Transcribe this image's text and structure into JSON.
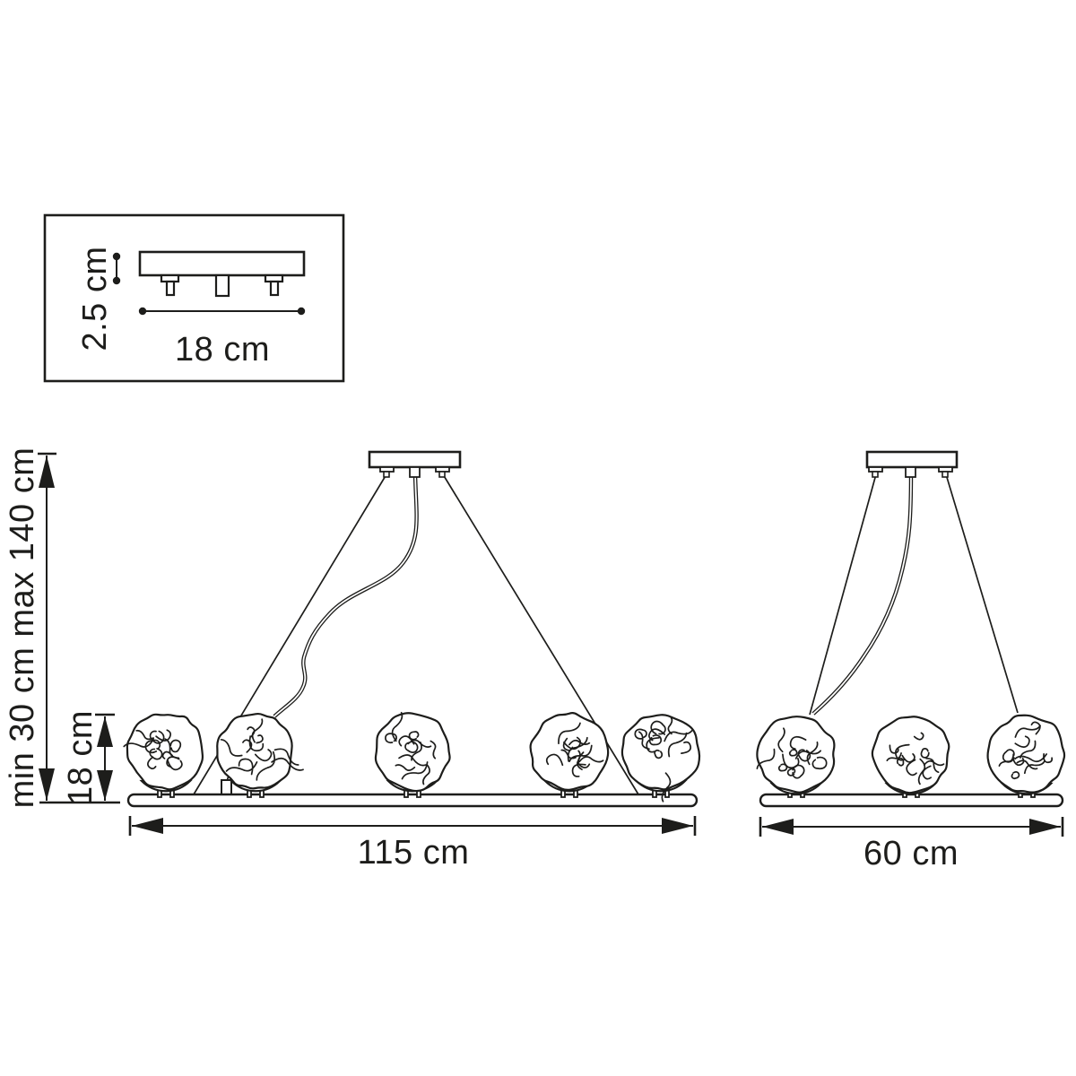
{
  "page": {
    "background": "#ffffff",
    "line_color": "#1d1d1b"
  },
  "canopy_inset": {
    "height_label": "2.5 cm",
    "width_label": "18 cm",
    "stud_count": 3
  },
  "left_fixture": {
    "shade_count": 5,
    "width_label": "115 cm",
    "shade_height_label": "18 cm",
    "suspension_label": "min 30 cm max 140 cm"
  },
  "right_fixture": {
    "shade_count": 3,
    "width_label": "60 cm"
  }
}
